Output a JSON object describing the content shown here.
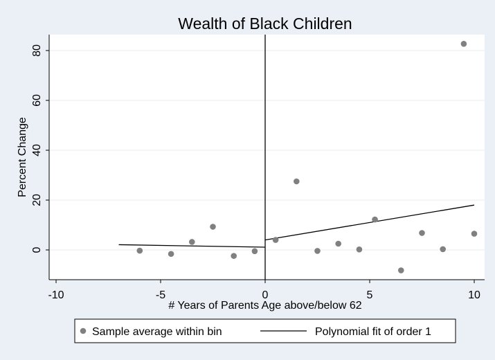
{
  "chart_data": {
    "type": "scatter",
    "title": "Wealth of Black Children",
    "xlabel": "# Years of Parents Age above/below 62",
    "ylabel": "Percent Change",
    "xlim": [
      -10,
      10
    ],
    "ylim": [
      -10,
      85
    ],
    "xticks": [
      -10,
      -5,
      0,
      5,
      10
    ],
    "xtick_labels": [
      "-10",
      "-5",
      "0",
      "5",
      "10"
    ],
    "yticks": [
      0,
      20,
      40,
      60,
      80
    ],
    "ytick_labels": [
      "0",
      "20",
      "40",
      "60",
      "80"
    ],
    "grid": true,
    "cutoff_line_x": 0,
    "legend_position": "bottom",
    "series": [
      {
        "name": "Sample average within bin",
        "kind": "scatter",
        "color": "#808080",
        "points": [
          {
            "x": -6,
            "y": -0.3
          },
          {
            "x": -4.5,
            "y": -1.6
          },
          {
            "x": -3.5,
            "y": 3.2
          },
          {
            "x": -2.5,
            "y": 9.3
          },
          {
            "x": -1.5,
            "y": -2.4
          },
          {
            "x": -0.5,
            "y": -0.5
          },
          {
            "x": 0.5,
            "y": 4.0
          },
          {
            "x": 1.5,
            "y": 27.5
          },
          {
            "x": 2.5,
            "y": -0.4
          },
          {
            "x": 3.5,
            "y": 2.5
          },
          {
            "x": 4.5,
            "y": 0.2
          },
          {
            "x": 5.25,
            "y": 12.2
          },
          {
            "x": 6.5,
            "y": -8.2
          },
          {
            "x": 7.5,
            "y": 6.8
          },
          {
            "x": 8.5,
            "y": 0.3
          },
          {
            "x": 9.5,
            "y": 82.7
          },
          {
            "x": 10,
            "y": 6.5
          }
        ]
      },
      {
        "name": "Polynomial fit of order 1",
        "kind": "line",
        "color": "#000000",
        "segments": [
          [
            {
              "x": -7,
              "y": 2.1
            },
            {
              "x": 0,
              "y": 1.1
            }
          ],
          [
            {
              "x": 0,
              "y": 4.0
            },
            {
              "x": 10,
              "y": 18.0
            }
          ]
        ]
      }
    ]
  }
}
